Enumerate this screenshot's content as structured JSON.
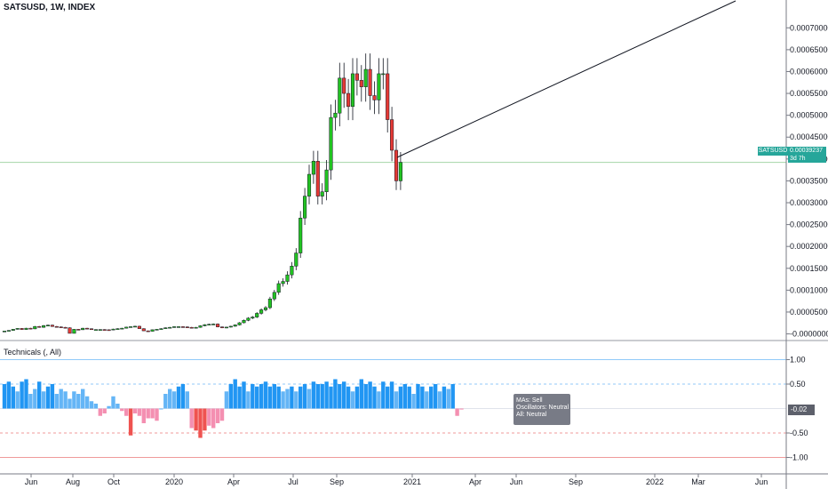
{
  "header": {
    "title": "SATSUSD, 1W, INDEX"
  },
  "indicator": {
    "title": "Technicals (, All)"
  },
  "price_label": {
    "symbol": "SATSUSD",
    "value": "0.00039237",
    "countdown": "3d 7h"
  },
  "tech_label": {
    "value": "-0.02"
  },
  "tooltip": {
    "mas": "MAs:      Sell",
    "osc": "Oscillators: Neutral",
    "all": "All:   Neutral"
  },
  "colors": {
    "up": "#26a69a",
    "up_fill": "#22c322",
    "down": "#e53935",
    "bar_pos": "#2196f3",
    "bar_pos_light": "#64b5f6",
    "bar_neg": "#ef5350",
    "bar_neg_light": "#f48fb1"
  },
  "chart_data": [
    {
      "type": "candlestick",
      "title": "SATSUSD, 1W, INDEX",
      "y_ticks": [
        "0.00070000",
        "0.00065000",
        "0.00060000",
        "0.00055000",
        "0.00050000",
        "0.00045000",
        "0.00040000",
        "0.00035000",
        "0.00030000",
        "0.00025000",
        "0.00020000",
        "0.00015000",
        "0.00010000",
        "0.00005000",
        "-0.00000000"
      ],
      "y_tick_values": [
        0.0007,
        0.00065,
        0.0006,
        0.00055,
        0.0005,
        0.00045,
        0.0004,
        0.00035,
        0.0003,
        0.00025,
        0.0002,
        0.00015,
        0.0001,
        5e-05,
        0.0
      ],
      "ylim": [
        -5e-06,
        0.000725
      ],
      "x_ticks": [
        "Jun",
        "Aug",
        "Oct",
        "2020",
        "Apr",
        "Jul",
        "Sep",
        "2021",
        "Apr",
        "Jun",
        "Sep",
        "2022",
        "Mar",
        "Jun"
      ],
      "weekly_closes": [
        6.5e-06,
        8e-06,
        1.05e-05,
        1.25e-05,
        1e-05,
        1.3e-05,
        1.15e-05,
        1.7e-05,
        1.5e-05,
        1.9e-05,
        2e-05,
        1.7e-05,
        1.6e-05,
        1.5e-05,
        1.4e-05,
        1.25e-06,
        1.05e-05,
        9.5e-06,
        1.3e-05,
        1.18e-05,
        9.8e-06,
        1e-05,
        1e-05,
        9.5e-06,
        9e-06,
        1.1e-05,
        1.2e-05,
        1.3e-05,
        1.55e-05,
        1.65e-05,
        1.75e-05,
        1.2e-05,
        7e-06,
        6e-06,
        9.5e-06,
        1.05e-05,
        1.2e-05,
        1.4e-05,
        1.5e-05,
        1.65e-05,
        1.65e-05,
        1.6e-05,
        1.5e-05,
        1.4e-05,
        1.5e-05,
        1.85e-05,
        2.1e-05,
        2.2e-05,
        2.25e-05,
        1.6e-05,
        1.4e-05,
        1.55e-05,
        1.75e-05,
        2.05e-05,
        2.55e-05,
        3.1e-05,
        3.6e-05,
        3.85e-05,
        4.7e-05,
        5.5e-05,
        6e-05,
        8e-05,
        9.5e-05,
        0.000115,
        0.00012,
        0.000135,
        0.000155,
        0.000185,
        0.000265,
        0.000315,
        0.000365,
        0.000395,
        0.000315,
        0.000325,
        0.000375,
        0.000495,
        0.000505,
        0.000585,
        0.00055,
        0.00052,
        0.000595,
        0.00058,
        0.000565,
        0.000605,
        0.000545,
        0.000535,
        0.000595,
        0.000595,
        0.00049,
        0.00042,
        0.00035,
        0.00039237
      ],
      "last_price": 0.00039237
    },
    {
      "type": "bar",
      "title": "Technicals (, All)",
      "y_ticks": [
        "1.00",
        "0.50",
        "-0.50",
        "-1.00"
      ],
      "y_tick_values": [
        1.0,
        0.5,
        -0.5,
        -1.0
      ],
      "ylim": [
        -1.1,
        1.1
      ],
      "values": [
        0.5,
        0.55,
        0.45,
        0.35,
        0.55,
        0.6,
        0.3,
        0.4,
        0.55,
        0.35,
        0.45,
        0.5,
        0.3,
        0.4,
        0.35,
        0.2,
        0.35,
        0.3,
        0.4,
        0.25,
        0.15,
        0.1,
        -0.15,
        -0.1,
        0.05,
        0.25,
        0.1,
        -0.05,
        -0.15,
        -0.55,
        -0.1,
        -0.15,
        -0.3,
        -0.2,
        -0.2,
        -0.25,
        0.0,
        0.3,
        0.4,
        0.35,
        0.45,
        0.5,
        0.35,
        -0.4,
        -0.45,
        -0.6,
        -0.45,
        -0.35,
        -0.4,
        -0.3,
        -0.25,
        0.35,
        0.5,
        0.6,
        0.45,
        0.55,
        0.35,
        0.5,
        0.45,
        0.5,
        0.55,
        0.45,
        0.5,
        0.45,
        0.35,
        0.4,
        0.45,
        0.35,
        0.45,
        0.5,
        0.4,
        0.55,
        0.5,
        0.5,
        0.55,
        0.45,
        0.6,
        0.5,
        0.55,
        0.45,
        0.35,
        0.45,
        0.6,
        0.5,
        0.55,
        0.45,
        0.35,
        0.55,
        0.45,
        0.55,
        0.35,
        0.45,
        0.5,
        0.45,
        0.3,
        0.5,
        0.45,
        0.35,
        0.45,
        0.5,
        0.35,
        0.45,
        0.4,
        0.5,
        -0.15,
        -0.02
      ]
    }
  ]
}
